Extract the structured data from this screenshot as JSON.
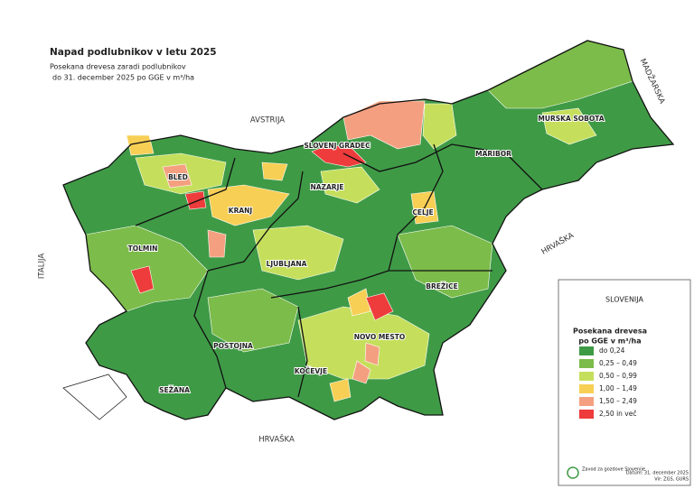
{
  "header": {
    "title": "Napad podlubnikov v letu 2025",
    "subtitle": [
      "Posekana drevesa zaradi podlubnikov",
      "do 31. december 2025 po GGE v m³/ha"
    ]
  },
  "countries": [
    "AVSTRIJA",
    "MADŽARSKA",
    "HRVAŠKA",
    "HRVAŠKA",
    "ITALIJA"
  ],
  "places": [
    "SLOVENJ GRADEC",
    "BLED",
    "NAZARJE",
    "MURSKA SOBOTA",
    "MARIBOR",
    "KRANJ",
    "CELJE",
    "TOLMIN",
    "LJUBLJANA",
    "BREŽICE",
    "POSTOJNA",
    "NOVO MESTO",
    "KOČEVJE",
    "SEŽANA"
  ],
  "legend": {
    "heading": "SLOVENIJA",
    "title": [
      "Posekana drevesa",
      "po GGE v m³/ha"
    ],
    "items": [
      {
        "label": "do 0,24",
        "color": "#3f9a46"
      },
      {
        "label": "0,25 – 0,49",
        "color": "#7cbc4a"
      },
      {
        "label": "0,50 – 0,99",
        "color": "#c5df5c"
      },
      {
        "label": "1,00 – 1,49",
        "color": "#f8cf55"
      },
      {
        "label": "1,50 – 2,49",
        "color": "#f4a080"
      },
      {
        "label": "2,50 in več",
        "color": "#ee3b3b"
      }
    ]
  },
  "footer": {
    "organization": "Zavod za gozdove Slovenije",
    "date": "Datum: 31. december 2025",
    "source": "Vir: ZGS, GURS"
  }
}
